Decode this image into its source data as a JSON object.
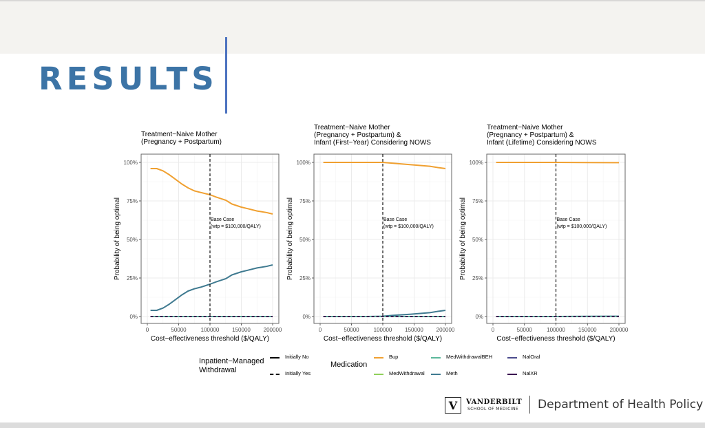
{
  "slide": {
    "title": "RESULTS",
    "footer": {
      "logo_mark": "V",
      "logo_name": "VANDERBILT",
      "logo_sub": "SCHOOL OF MEDICINE",
      "department": "Department of Health Policy"
    }
  },
  "colors": {
    "title": "#3c74a6",
    "accent_bar": "#4d73c0",
    "Bup": "#f0a030",
    "MedWithdrawal": "#8fd05a",
    "MedWithdrawalBEH": "#5ab89a",
    "Meth": "#3f7a90",
    "NalOral": "#4a4a8c",
    "NalXR": "#3a0a50"
  },
  "legend": {
    "withdrawal_title": "Inpatient−Managed\nWithdrawal",
    "withdrawal_items": [
      {
        "label": "Initially No",
        "linetype": "solid"
      },
      {
        "label": "Initially Yes",
        "linetype": "dashed"
      }
    ],
    "medication_title": "Medication",
    "medication_items": [
      {
        "label": "Bup",
        "key": "Bup"
      },
      {
        "label": "MedWithdrawal",
        "key": "MedWithdrawal"
      },
      {
        "label": "MedWithdrawalBEH",
        "key": "MedWithdrawalBEH"
      },
      {
        "label": "Meth",
        "key": "Meth"
      },
      {
        "label": "NalOral",
        "key": "NalOral"
      },
      {
        "label": "NalXR",
        "key": "NalXR"
      }
    ]
  },
  "chart_data": [
    {
      "type": "line",
      "title": "Treatment−Naive Mother\n(Pregnancy + Postpartum)",
      "xlabel": "Cost−effectiveness threshold ($/QALY)",
      "ylabel": "Probability of being optimal",
      "xlim": [
        0,
        200000
      ],
      "ylim": [
        0,
        1
      ],
      "xticks": [
        "0",
        "50000",
        "100000",
        "150000",
        "200000"
      ],
      "yticks": [
        "0%",
        "25%",
        "50%",
        "75%",
        "100%"
      ],
      "grid": true,
      "vline": {
        "x": 100000,
        "label": "Base Case\n(wtp = $100,000/QALY)"
      },
      "x": [
        5000,
        15000,
        25000,
        35000,
        45000,
        55000,
        65000,
        75000,
        85000,
        100000,
        110000,
        125000,
        135000,
        150000,
        160000,
        175000,
        190000,
        200000
      ],
      "series": [
        {
          "name": "Bup",
          "values": [
            0.96,
            0.96,
            0.945,
            0.92,
            0.89,
            0.86,
            0.835,
            0.815,
            0.805,
            0.79,
            0.775,
            0.755,
            0.73,
            0.71,
            0.7,
            0.685,
            0.675,
            0.665
          ]
        },
        {
          "name": "Meth",
          "values": [
            0.04,
            0.04,
            0.055,
            0.08,
            0.11,
            0.14,
            0.165,
            0.18,
            0.19,
            0.21,
            0.225,
            0.245,
            0.27,
            0.29,
            0.3,
            0.315,
            0.325,
            0.335
          ]
        },
        {
          "name": "MedWithdrawalBEH",
          "values": [
            0,
            0,
            0,
            0,
            0,
            0,
            0,
            0,
            0,
            0,
            0,
            0,
            0,
            0,
            0,
            0,
            0,
            0
          ]
        },
        {
          "name": "NalXR",
          "values": [
            0,
            0,
            0,
            0,
            0,
            0,
            0,
            0,
            0,
            0,
            0,
            0,
            0,
            0,
            0,
            0,
            0,
            0
          ]
        }
      ]
    },
    {
      "type": "line",
      "title": "Treatment−Naive Mother\n(Pregnancy + Postpartum) &\nInfant (First−Year) Considering NOWS",
      "xlabel": "Cost−effectiveness threshold ($/QALY)",
      "ylabel": "Probability of being optimal",
      "xlim": [
        0,
        200000
      ],
      "ylim": [
        0,
        1
      ],
      "xticks": [
        "0",
        "50000",
        "100000",
        "150000",
        "200000"
      ],
      "yticks": [
        "0%",
        "25%",
        "50%",
        "75%",
        "100%"
      ],
      "grid": true,
      "vline": {
        "x": 100000,
        "label": "Base Case\n(wtp = $100,000/QALY)"
      },
      "x": [
        5000,
        25000,
        50000,
        75000,
        100000,
        115000,
        130000,
        145000,
        160000,
        175000,
        190000,
        200000
      ],
      "series": [
        {
          "name": "Bup",
          "values": [
            1.0,
            1.0,
            1.0,
            1.0,
            1.0,
            0.995,
            0.99,
            0.985,
            0.98,
            0.975,
            0.965,
            0.96
          ]
        },
        {
          "name": "Meth",
          "values": [
            0,
            0,
            0,
            0,
            0.002,
            0.007,
            0.011,
            0.015,
            0.02,
            0.025,
            0.035,
            0.04
          ]
        },
        {
          "name": "MedWithdrawalBEH",
          "values": [
            0,
            0,
            0,
            0,
            0,
            0,
            0,
            0,
            0,
            0,
            0,
            0
          ]
        },
        {
          "name": "NalXR",
          "values": [
            0,
            0,
            0,
            0,
            0,
            0,
            0,
            0,
            0,
            0,
            0,
            0
          ]
        }
      ]
    },
    {
      "type": "line",
      "title": "Treatment−Naive Mother\n(Pregnancy + Postpartum) &\nInfant (Lifetime) Considering NOWS",
      "xlabel": "Cost−effectiveness threshold ($/QALY)",
      "ylabel": "Probability of being optimal",
      "xlim": [
        0,
        200000
      ],
      "ylim": [
        0,
        1
      ],
      "xticks": [
        "0",
        "50000",
        "100000",
        "150000",
        "200000"
      ],
      "yticks": [
        "0%",
        "25%",
        "50%",
        "75%",
        "100%"
      ],
      "grid": true,
      "vline": {
        "x": 100000,
        "label": "Base Case\n(wtp = $100,000/QALY)"
      },
      "x": [
        5000,
        50000,
        100000,
        150000,
        200000
      ],
      "series": [
        {
          "name": "Bup",
          "values": [
            1.0,
            1.0,
            1.0,
            0.999,
            0.998
          ]
        },
        {
          "name": "Meth",
          "values": [
            0,
            0,
            0,
            0.001,
            0.002
          ]
        },
        {
          "name": "MedWithdrawalBEH",
          "values": [
            0,
            0,
            0,
            0,
            0
          ]
        },
        {
          "name": "NalXR",
          "values": [
            0,
            0,
            0,
            0,
            0
          ]
        }
      ]
    }
  ]
}
